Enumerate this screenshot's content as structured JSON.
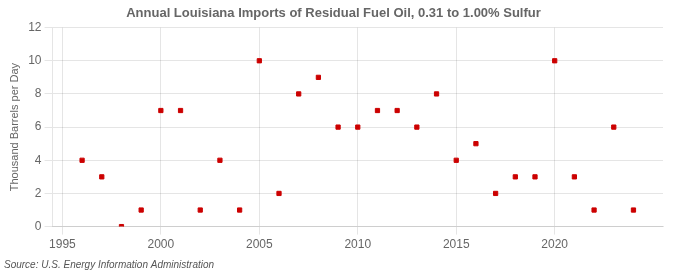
{
  "chart_data": {
    "type": "scatter",
    "title": "Annual Louisiana Imports of Residual Fuel Oil, 0.31 to 1.00% Sulfur",
    "y_label": "Thousand Barrels per Day",
    "annotations": [
      "Source: U.S. Energy Information Administration"
    ],
    "x": [
      1996,
      1997,
      1998,
      1999,
      2000,
      2001,
      2002,
      2003,
      2004,
      2005,
      2006,
      2007,
      2008,
      2009,
      2010,
      2011,
      2012,
      2013,
      2014,
      2015,
      2016,
      2017,
      2018,
      2019,
      2020,
      2021,
      2022,
      2023,
      2024
    ],
    "values": [
      4,
      3,
      0,
      1,
      7,
      7,
      1,
      4,
      1,
      10,
      2,
      8,
      9,
      6,
      6,
      7,
      7,
      6,
      8,
      4,
      5,
      2,
      3,
      3,
      10,
      3,
      1,
      6,
      1
    ],
    "color": "#cc0000",
    "marker": "square",
    "xlim": [
      1994.5,
      2025.5
    ],
    "xticks": [
      1995,
      2000,
      2005,
      2010,
      2015,
      2020
    ],
    "ylim": [
      0,
      12
    ],
    "yticks": [
      0,
      2,
      4,
      6,
      8,
      10,
      12
    ],
    "grid": true
  }
}
